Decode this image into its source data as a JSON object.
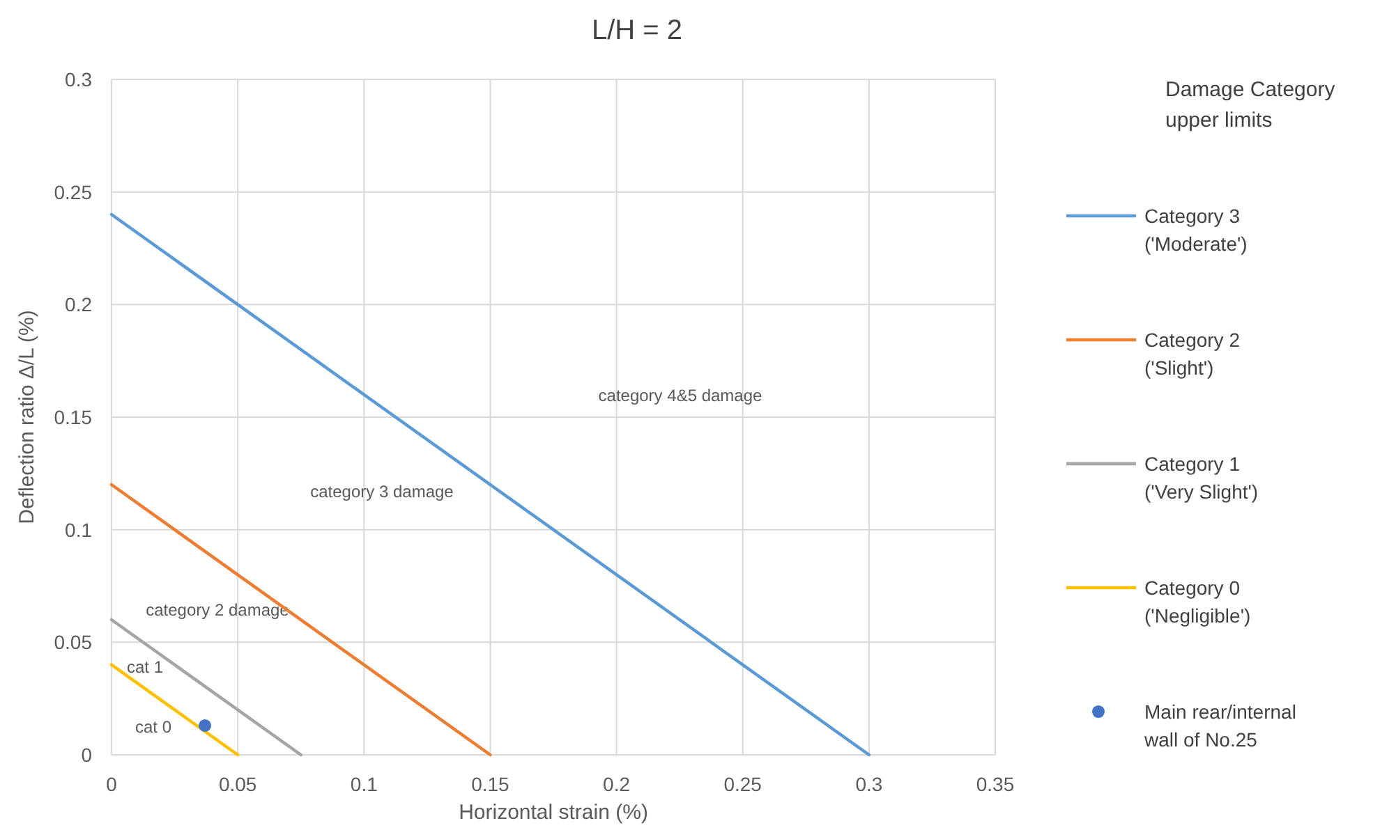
{
  "chart_data": {
    "type": "line",
    "title": "L/H = 2",
    "xlabel": "Horizontal strain (%)",
    "ylabel": "Deflection ratio Δ/L (%)",
    "legend_title": "Damage Category\nupper limits",
    "xlim": [
      0,
      0.35
    ],
    "xticks": [
      0,
      0.05,
      0.1,
      0.15,
      0.2,
      0.25,
      0.3,
      0.35
    ],
    "ylim": [
      0,
      0.3
    ],
    "yticks": [
      0,
      0.05,
      0.1,
      0.15,
      0.2,
      0.25,
      0.3
    ],
    "grid": true,
    "legend": "right",
    "marker": "none",
    "line_style": "solid",
    "series": [
      {
        "name": "Category 3\n('Moderate')",
        "color": "#5b9bd5",
        "x": [
          0,
          0.3
        ],
        "values": [
          0.24,
          0
        ]
      },
      {
        "name": "Category 2\n('Slight')",
        "color": "#ed7d31",
        "x": [
          0,
          0.15
        ],
        "values": [
          0.12,
          0
        ]
      },
      {
        "name": "Category 1\n('Very Slight')",
        "color": "#a5a5a5",
        "x": [
          0,
          0.075
        ],
        "values": [
          0.06,
          0
        ]
      },
      {
        "name": "Category 0\n('Negligible')",
        "color": "#ffc000",
        "x": [
          0,
          0.05
        ],
        "values": [
          0.04,
          0
        ]
      },
      {
        "name": "Main rear/internal\nwall of No.25",
        "type": "scatter",
        "marker": "circle",
        "color": "#4472c4",
        "x": [
          0.037
        ],
        "values": [
          0.013
        ]
      }
    ],
    "annotations": [
      "category 4&5 damage",
      "category 3 damage",
      "category 2 damage",
      "cat 1",
      "cat 0"
    ]
  }
}
